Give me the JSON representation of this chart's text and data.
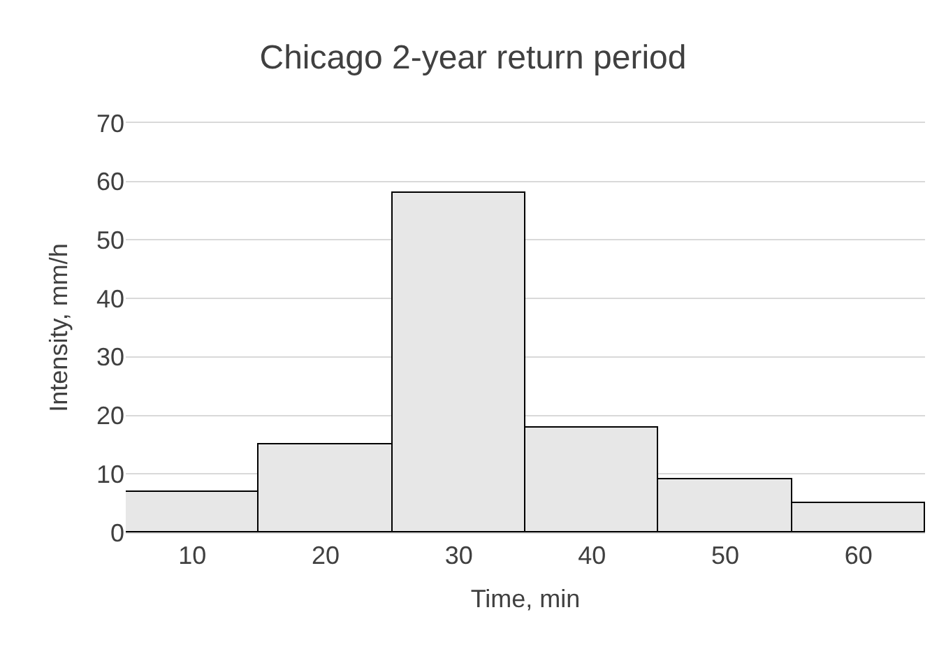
{
  "chart_data": {
    "type": "bar",
    "title": "Chicago 2-year return period",
    "xlabel": "Time, min",
    "ylabel": "Intensity, mm/h",
    "categories": [
      "10",
      "20",
      "30",
      "40",
      "50",
      "60"
    ],
    "values": [
      7,
      15,
      58,
      18,
      9,
      5
    ],
    "color": "#e7e7e7",
    "ylim": [
      0,
      70
    ],
    "yticks": [
      0,
      10,
      20,
      30,
      40,
      50,
      60,
      70
    ],
    "grid": "y"
  }
}
